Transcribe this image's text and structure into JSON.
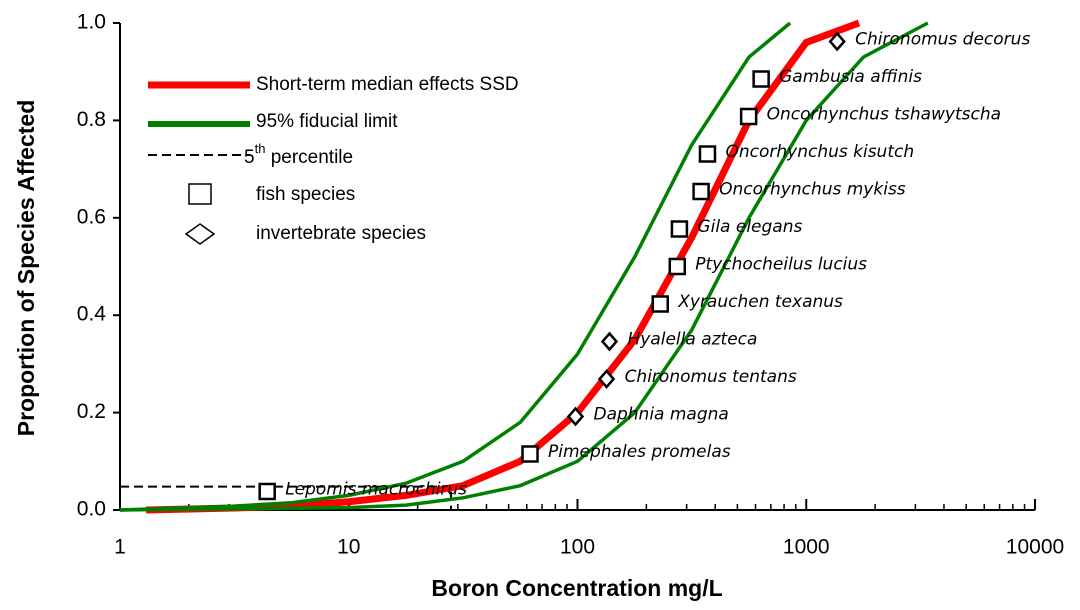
{
  "chart_data": {
    "type": "line",
    "xlabel": "Boron Concentration mg/L",
    "ylabel": "Proportion of Species Affected",
    "xscale": "log",
    "xlim": [
      1,
      10000
    ],
    "xticks": [
      1,
      10,
      100,
      1000,
      10000
    ],
    "ylim": [
      0,
      1
    ],
    "yticks": [
      {
        "value": 0,
        "label": "0.0"
      },
      0.2,
      0.4,
      0.6,
      0.8,
      {
        "value": 1,
        "label": "1.0"
      }
    ],
    "legend": "upper left",
    "series": [
      {
        "name": "Short-term median effects SSD",
        "color": "#ff0000",
        "style": "line",
        "x": [
          1.3,
          3.16,
          5.62,
          10,
          17.8,
          31.6,
          56.2,
          100,
          178,
          316,
          562,
          1000,
          1700
        ],
        "values": [
          0,
          0.004,
          0.008,
          0.017,
          0.03,
          0.05,
          0.1,
          0.2,
          0.35,
          0.56,
          0.8,
          0.96,
          1.0
        ]
      },
      {
        "name": "95% fiducial limit",
        "color": "#008000",
        "style": "line",
        "x": [
          1,
          3.16,
          5.62,
          10,
          17.8,
          31.6,
          56.2,
          100,
          178,
          316,
          562,
          850
        ],
        "values": [
          0,
          0.008,
          0.015,
          0.03,
          0.055,
          0.1,
          0.18,
          0.32,
          0.52,
          0.75,
          0.93,
          1.0
        ]
      },
      {
        "color": "#008000",
        "style": "line",
        "x": [
          1,
          10,
          17.8,
          31.6,
          56.2,
          100,
          178,
          316,
          562,
          1000,
          1778,
          3400
        ],
        "values": [
          0,
          0.005,
          0.01,
          0.025,
          0.05,
          0.1,
          0.2,
          0.37,
          0.6,
          0.8,
          0.93,
          1.0
        ]
      },
      {
        "name": "fish species",
        "color": "#000000",
        "style": "square",
        "x": [
          4.4,
          62,
          230,
          273,
          279,
          347,
          370,
          560,
          635
        ],
        "values": [
          0.038,
          0.115,
          0.423,
          0.5,
          0.577,
          0.654,
          0.731,
          0.808,
          0.885
        ],
        "labels": [
          "Lepomis macrochirus",
          "Pimephales promelas",
          "Xyrauchen texanus",
          "Ptychocheilus lucius",
          "Gila elegans",
          "Oncorhynchus mykiss",
          "Oncorhynchus kisutch",
          "Oncorhynchus tshawytscha",
          "Gambusia affinis"
        ]
      },
      {
        "name": "invertebrate species",
        "color": "#000000",
        "style": "diamond",
        "x": [
          98,
          134,
          138,
          1365
        ],
        "values": [
          0.192,
          0.269,
          0.346,
          0.962
        ],
        "labels": [
          "Daphnia magna",
          "Chironomus tentans",
          "Hyalella azteca",
          "Chironomus decorus"
        ]
      }
    ],
    "percentile": {
      "label_parts": [
        "5",
        "th",
        " percentile"
      ],
      "x": 28,
      "y": 0.048
    }
  }
}
